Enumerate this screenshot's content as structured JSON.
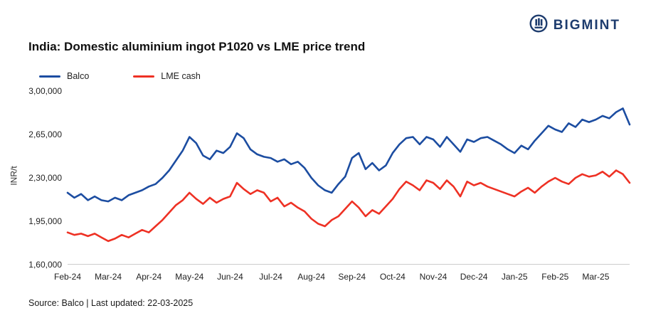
{
  "brand": {
    "name": "BIGMINT",
    "color": "#1d3c6e"
  },
  "title": "India: Domestic aluminium ingot P1020 vs LME price trend",
  "footer": {
    "source_line": "Source: Balco | Last updated: 22-03-2025"
  },
  "chart_data": {
    "type": "line",
    "title": "India: Domestic aluminium ingot P1020 vs LME price trend",
    "xlabel": "",
    "ylabel": "INR/t",
    "ylim": [
      160000,
      300000
    ],
    "yticks": [
      300000,
      265000,
      230000,
      195000,
      160000
    ],
    "ytick_labels": [
      "3,00,000",
      "2,65,000",
      "2,30,000",
      "1,95,000",
      "1,60,000"
    ],
    "x_categories": [
      "Feb-24",
      "Mar-24",
      "Apr-24",
      "May-24",
      "Jun-24",
      "Jul-24",
      "Aug-24",
      "Sep-24",
      "Oct-24",
      "Nov-24",
      "Dec-24",
      "Jan-25",
      "Feb-25",
      "Mar-25"
    ],
    "points_per_month": 6,
    "grid": false,
    "legend_position": "top-left",
    "series": [
      {
        "name": "Balco",
        "color": "#1c4da1",
        "values": [
          218000,
          214000,
          217000,
          212000,
          215000,
          212000,
          211000,
          214000,
          212000,
          216000,
          218000,
          220000,
          223000,
          225000,
          230000,
          236000,
          244000,
          252000,
          263000,
          258000,
          248000,
          245000,
          252000,
          250000,
          255000,
          266000,
          262000,
          253000,
          249000,
          247000,
          246000,
          243000,
          245000,
          241000,
          243000,
          238000,
          230000,
          224000,
          220000,
          218000,
          225000,
          231000,
          246000,
          250000,
          237000,
          242000,
          236000,
          240000,
          250000,
          257000,
          262000,
          263000,
          257000,
          263000,
          261000,
          255000,
          263000,
          257000,
          251000,
          261000,
          259000,
          262000,
          263000,
          260000,
          257000,
          253000,
          250000,
          256000,
          253000,
          260000,
          266000,
          272000,
          269000,
          267000,
          274000,
          271000,
          277000,
          275000,
          277000,
          280000,
          278000,
          283000,
          286000,
          273000
        ]
      },
      {
        "name": "LME cash",
        "color": "#ee3124",
        "values": [
          186000,
          184000,
          185000,
          183000,
          185000,
          182000,
          179000,
          181000,
          184000,
          182000,
          185000,
          188000,
          186000,
          191000,
          196000,
          202000,
          208000,
          212000,
          218000,
          213000,
          209000,
          214000,
          210000,
          213000,
          215000,
          226000,
          221000,
          217000,
          220000,
          218000,
          211000,
          214000,
          207000,
          210000,
          206000,
          203000,
          197000,
          193000,
          191000,
          196000,
          199000,
          205000,
          211000,
          206000,
          199000,
          204000,
          201000,
          207000,
          213000,
          221000,
          227000,
          224000,
          220000,
          228000,
          226000,
          221000,
          228000,
          223000,
          215000,
          227000,
          224000,
          226000,
          223000,
          221000,
          219000,
          217000,
          215000,
          219000,
          222000,
          218000,
          223000,
          227000,
          230000,
          227000,
          225000,
          230000,
          233000,
          231000,
          232000,
          235000,
          231000,
          236000,
          233000,
          226000
        ]
      }
    ]
  }
}
